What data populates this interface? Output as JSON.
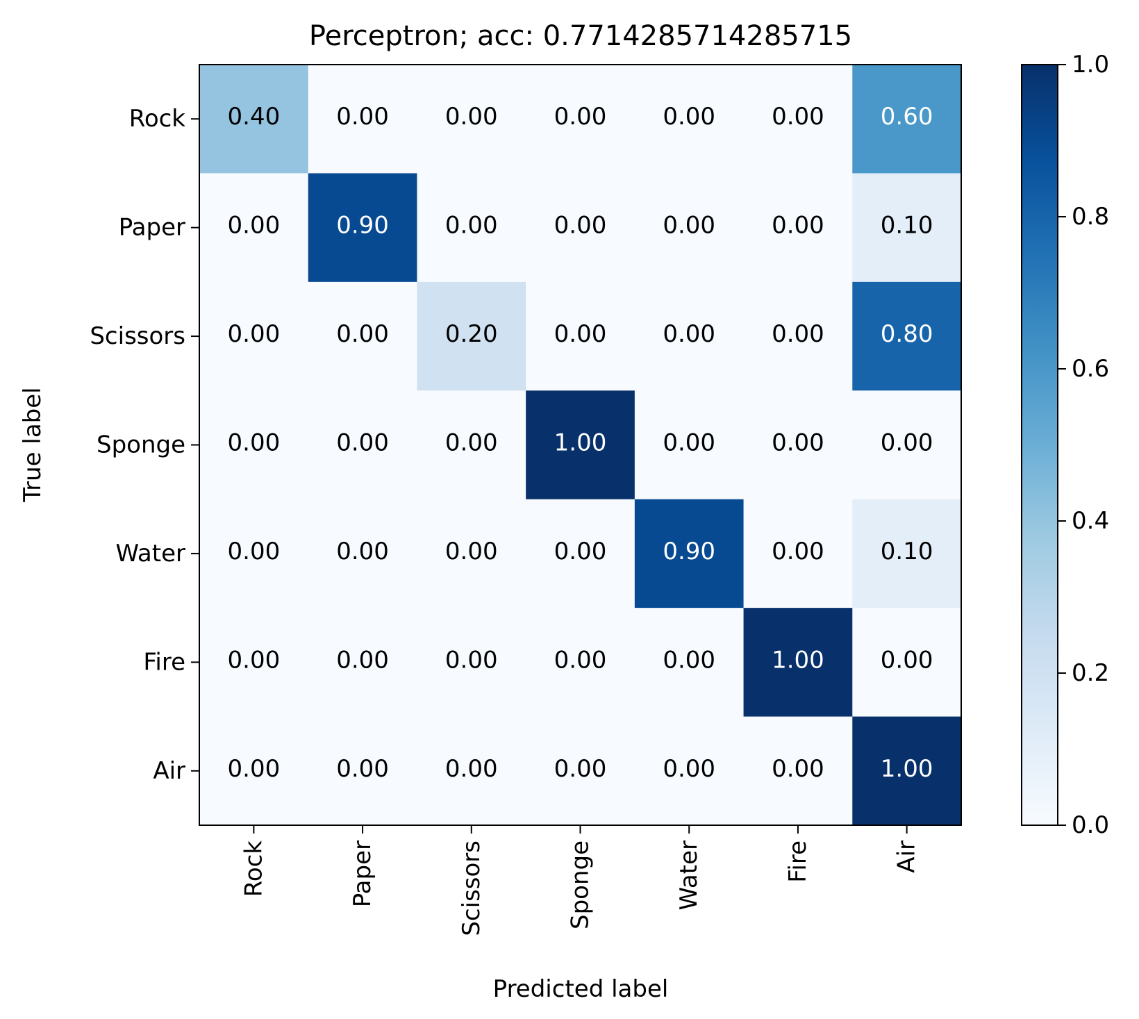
{
  "chart_data": {
    "type": "heatmap",
    "title": "Perceptron; acc: 0.7714285714285715",
    "xlabel": "Predicted label",
    "ylabel": "True label",
    "row_labels": [
      "Rock",
      "Paper",
      "Scissors",
      "Sponge",
      "Water",
      "Fire",
      "Air"
    ],
    "col_labels": [
      "Rock",
      "Paper",
      "Scissors",
      "Sponge",
      "Water",
      "Fire",
      "Air"
    ],
    "values": [
      [
        0.4,
        0.0,
        0.0,
        0.0,
        0.0,
        0.0,
        0.6
      ],
      [
        0.0,
        0.9,
        0.0,
        0.0,
        0.0,
        0.0,
        0.1
      ],
      [
        0.0,
        0.0,
        0.2,
        0.0,
        0.0,
        0.0,
        0.8
      ],
      [
        0.0,
        0.0,
        0.0,
        1.0,
        0.0,
        0.0,
        0.0
      ],
      [
        0.0,
        0.0,
        0.0,
        0.0,
        0.9,
        0.0,
        0.1
      ],
      [
        0.0,
        0.0,
        0.0,
        0.0,
        0.0,
        1.0,
        0.0
      ],
      [
        0.0,
        0.0,
        0.0,
        0.0,
        0.0,
        0.0,
        1.0
      ]
    ],
    "cell_labels": [
      [
        "0.40",
        "0.00",
        "0.00",
        "0.00",
        "0.00",
        "0.00",
        "0.60"
      ],
      [
        "0.00",
        "0.90",
        "0.00",
        "0.00",
        "0.00",
        "0.00",
        "0.10"
      ],
      [
        "0.00",
        "0.00",
        "0.20",
        "0.00",
        "0.00",
        "0.00",
        "0.80"
      ],
      [
        "0.00",
        "0.00",
        "0.00",
        "1.00",
        "0.00",
        "0.00",
        "0.00"
      ],
      [
        "0.00",
        "0.00",
        "0.00",
        "0.00",
        "0.90",
        "0.00",
        "0.10"
      ],
      [
        "0.00",
        "0.00",
        "0.00",
        "0.00",
        "0.00",
        "1.00",
        "0.00"
      ],
      [
        "0.00",
        "0.00",
        "0.00",
        "0.00",
        "0.00",
        "0.00",
        "1.00"
      ]
    ],
    "colormap": "Blues",
    "colormap_range": [
      0.0,
      1.0
    ],
    "colorbar_ticks": [
      "0.0",
      "0.2",
      "0.4",
      "0.6",
      "0.8",
      "1.0"
    ],
    "grid": false
  }
}
